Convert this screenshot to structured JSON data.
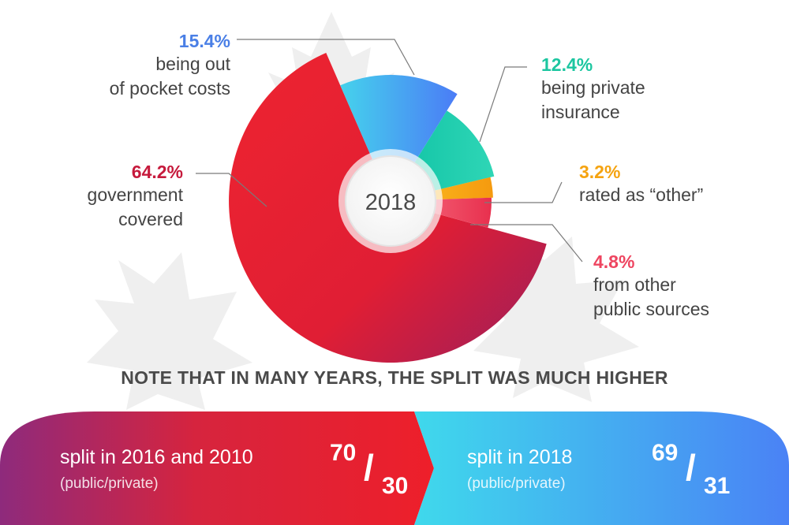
{
  "chart_data": {
    "type": "pie",
    "center_label": "2018",
    "slices": [
      {
        "label": "government covered",
        "value": 64.2,
        "value_label": "64.2%",
        "color": "#e8202e"
      },
      {
        "label": "being out of pocket costs",
        "value": 15.4,
        "value_label": "15.4%",
        "color": "#4a8af4"
      },
      {
        "label": "being private insurance",
        "value": 12.4,
        "value_label": "12.4%",
        "color": "#1fc9a6"
      },
      {
        "label": "rated as “other”",
        "value": 3.2,
        "value_label": "3.2%",
        "color": "#f7a614"
      },
      {
        "label": "from other public sources",
        "value": 4.8,
        "value_label": "4.8%",
        "color": "#f04a62"
      }
    ]
  },
  "labels": {
    "oop": {
      "pct": "15.4%",
      "line1": "being out",
      "line2": "of pocket costs",
      "color": "#4a7fe6"
    },
    "private": {
      "pct": "12.4%",
      "line1": "being private",
      "line2": "insurance",
      "color": "#1cc6a0"
    },
    "gov": {
      "pct": "64.2%",
      "line1": "government",
      "line2": "covered",
      "color": "#c61a3c"
    },
    "other": {
      "pct": "3.2%",
      "line1": "rated as “other”",
      "color": "#f5a310"
    },
    "public": {
      "pct": "4.8%",
      "line1": "from other",
      "line2": "public sources",
      "color": "#ee4560"
    }
  },
  "note": "NOTE THAT IN MANY YEARS, THE SPLIT WAS MUCH HIGHER",
  "split_past": {
    "title": "split in 2016 and 2010",
    "sub": "(public/private)",
    "public": "70",
    "private": "30"
  },
  "split_2018": {
    "title": "split in 2018",
    "sub": "(public/private)",
    "public": "69",
    "private": "31"
  }
}
